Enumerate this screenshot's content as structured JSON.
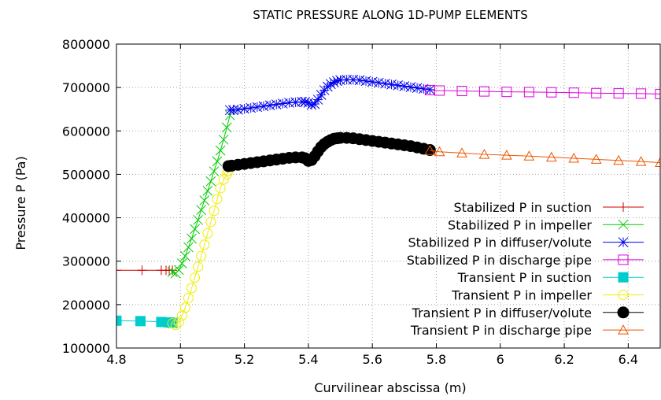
{
  "chart_data": {
    "type": "line",
    "title": "STATIC PRESSURE ALONG 1D-PUMP ELEMENTS",
    "xlabel": "Curvilinear abscissa (m)",
    "ylabel": "Pressure P (Pa)",
    "xlim": [
      4.8,
      6.5
    ],
    "ylim": [
      100000,
      800000
    ],
    "x_ticks": [
      4.8,
      5,
      5.2,
      5.4,
      5.6,
      5.8,
      6,
      6.2,
      6.4
    ],
    "x_tick_labels": [
      "4.8",
      "5",
      "5.2",
      "5.4",
      "5.6",
      "5.8",
      "6",
      "6.2",
      "6.4"
    ],
    "y_ticks": [
      100000,
      200000,
      300000,
      400000,
      500000,
      600000,
      700000,
      800000
    ],
    "y_tick_labels": [
      "100000",
      "200000",
      "300000",
      "400000",
      "500000",
      "600000",
      "700000",
      "800000"
    ],
    "grid": true,
    "legend_position": "right",
    "series": [
      {
        "name": "Stabilized P in suction",
        "color": "#cc0000",
        "marker": "plus",
        "x": [
          4.8,
          4.88,
          4.94,
          4.955,
          4.965,
          4.975
        ],
        "y": [
          279000,
          279000,
          279000,
          279000,
          279000,
          279000
        ]
      },
      {
        "name": "Stabilized P in impeller",
        "color": "#00cc00",
        "marker": "cross",
        "x": [
          4.975,
          4.985,
          4.995,
          5.005,
          5.015,
          5.025,
          5.035,
          5.045,
          5.055,
          5.065,
          5.075,
          5.085,
          5.095,
          5.105,
          5.115,
          5.125,
          5.135,
          5.145,
          5.155
        ],
        "y": [
          275000,
          272000,
          280000,
          295000,
          312000,
          332000,
          352000,
          374000,
          395000,
          418000,
          440000,
          462000,
          484000,
          507000,
          530000,
          555000,
          580000,
          608000,
          636000
        ]
      },
      {
        "name": "Stabilized P in diffuser/volute",
        "color": "#0000ee",
        "marker": "star",
        "x": [
          5.155,
          5.165,
          5.18,
          5.2,
          5.22,
          5.24,
          5.26,
          5.28,
          5.3,
          5.32,
          5.34,
          5.36,
          5.38,
          5.39,
          5.4,
          5.41,
          5.42,
          5.43,
          5.44,
          5.45,
          5.46,
          5.47,
          5.48,
          5.49,
          5.5,
          5.52,
          5.54,
          5.56,
          5.58,
          5.6,
          5.62,
          5.64,
          5.66,
          5.68,
          5.7,
          5.72,
          5.74,
          5.76,
          5.78
        ],
        "y": [
          648000,
          648000,
          649000,
          651000,
          653000,
          655000,
          657000,
          659000,
          661000,
          663000,
          665000,
          666000,
          667000,
          667000,
          665000,
          660000,
          662000,
          672000,
          683000,
          694000,
          702000,
          708000,
          712000,
          715000,
          717000,
          718000,
          718000,
          717000,
          715000,
          713000,
          711000,
          709000,
          707000,
          705000,
          703000,
          701000,
          699000,
          697000,
          695000
        ]
      },
      {
        "name": "Stabilized P in discharge pipe",
        "color": "#dd00dd",
        "marker": "square-open",
        "x": [
          5.78,
          5.81,
          5.88,
          5.95,
          6.02,
          6.09,
          6.16,
          6.23,
          6.3,
          6.37,
          6.44,
          6.5
        ],
        "y": [
          694000,
          693000,
          692000,
          691000,
          690000,
          689500,
          689000,
          688000,
          687000,
          686500,
          686000,
          685000
        ]
      },
      {
        "name": "Transient P in suction",
        "color": "#00cccc",
        "marker": "square-filled",
        "x": [
          4.8,
          4.875,
          4.94,
          4.965,
          4.975
        ],
        "y": [
          163000,
          162000,
          160000,
          159000,
          158000
        ]
      },
      {
        "name": "Transient P in impeller",
        "color": "#eeee00",
        "marker": "circle-open",
        "x": [
          4.975,
          4.985,
          4.995,
          5.005,
          5.015,
          5.025,
          5.035,
          5.045,
          5.055,
          5.065,
          5.075,
          5.085,
          5.095,
          5.105,
          5.115,
          5.125,
          5.135,
          5.145,
          5.15
        ],
        "y": [
          157000,
          153000,
          160000,
          175000,
          193000,
          215000,
          238000,
          262000,
          287000,
          312000,
          338000,
          364000,
          390000,
          416000,
          443000,
          468000,
          488000,
          500000,
          508000
        ]
      },
      {
        "name": "Transient P in diffuser/volute",
        "color": "#000000",
        "marker": "circle-filled",
        "x": [
          5.15,
          5.16,
          5.18,
          5.2,
          5.22,
          5.24,
          5.26,
          5.28,
          5.3,
          5.32,
          5.34,
          5.36,
          5.38,
          5.39,
          5.4,
          5.41,
          5.42,
          5.43,
          5.44,
          5.45,
          5.46,
          5.47,
          5.48,
          5.49,
          5.5,
          5.52,
          5.54,
          5.56,
          5.58,
          5.6,
          5.62,
          5.64,
          5.66,
          5.68,
          5.7,
          5.72,
          5.74,
          5.76,
          5.78
        ],
        "y": [
          519000,
          520000,
          522000,
          524000,
          526000,
          528000,
          530000,
          532000,
          534000,
          536000,
          538000,
          539000,
          539000,
          537000,
          531000,
          533000,
          542000,
          553000,
          563000,
          570000,
          575000,
          579000,
          582000,
          583000,
          584000,
          584000,
          583000,
          581000,
          579000,
          577000,
          575000,
          573000,
          571000,
          569000,
          567000,
          565000,
          562000,
          559000,
          556000
        ]
      },
      {
        "name": "Transient P in discharge pipe",
        "color": "#ee5500",
        "marker": "triangle-open",
        "x": [
          5.78,
          5.81,
          5.88,
          5.95,
          6.02,
          6.09,
          6.16,
          6.23,
          6.3,
          6.37,
          6.44,
          6.5
        ],
        "y": [
          555000,
          552000,
          549000,
          546000,
          544000,
          542000,
          539500,
          537000,
          534500,
          532000,
          529500,
          527000
        ]
      }
    ]
  }
}
